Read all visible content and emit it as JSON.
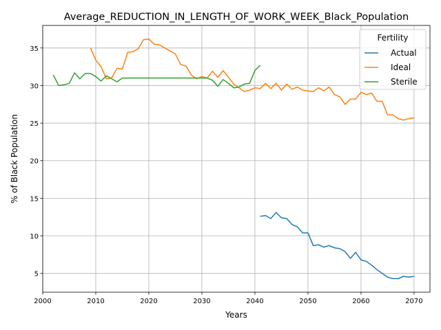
{
  "chart_data": {
    "type": "line",
    "title": "Average_REDUCTION_IN_LENGTH_OF_WORK_WEEK_Black_Population",
    "xlabel": "Years",
    "ylabel": "% of Black Population",
    "xlim": [
      2000,
      2073
    ],
    "ylim": [
      2.5,
      38
    ],
    "xticks": [
      2000,
      2010,
      2020,
      2030,
      2040,
      2050,
      2060,
      2070
    ],
    "yticks": [
      5,
      10,
      15,
      20,
      25,
      30,
      35
    ],
    "grid": true,
    "legend": {
      "title": "Fertility",
      "position": "top-right"
    },
    "series": [
      {
        "name": "Actual",
        "color": "#1f77b4",
        "x": [
          2041,
          2042,
          2043,
          2044,
          2045,
          2046,
          2047,
          2048,
          2049,
          2050,
          2051,
          2052,
          2053,
          2054,
          2055,
          2056,
          2057,
          2058,
          2059,
          2060,
          2061,
          2062,
          2063,
          2064,
          2065,
          2066,
          2067,
          2068,
          2069,
          2070
        ],
        "y": [
          12.6,
          12.7,
          12.3,
          13.1,
          12.4,
          12.3,
          11.5,
          11.2,
          10.4,
          10.4,
          8.7,
          8.8,
          8.5,
          8.7,
          8.4,
          8.3,
          7.9,
          7.0,
          7.8,
          6.8,
          6.6,
          6.1,
          5.5,
          5.0,
          4.5,
          4.3,
          4.3,
          4.6,
          4.5,
          4.6
        ]
      },
      {
        "name": "Ideal",
        "color": "#ff7f0e",
        "x": [
          2009,
          2010,
          2011,
          2012,
          2013,
          2014,
          2015,
          2016,
          2017,
          2018,
          2019,
          2020,
          2021,
          2022,
          2023,
          2024,
          2025,
          2026,
          2027,
          2028,
          2029,
          2030,
          2031,
          2032,
          2033,
          2034,
          2035,
          2036,
          2037,
          2038,
          2039,
          2040,
          2041,
          2042,
          2043,
          2044,
          2045,
          2046,
          2047,
          2048,
          2049,
          2050,
          2051,
          2052,
          2053,
          2054,
          2055,
          2056,
          2057,
          2058,
          2059,
          2060,
          2061,
          2062,
          2063,
          2064,
          2065,
          2066,
          2067,
          2068,
          2069,
          2070
        ],
        "y": [
          35.0,
          33.4,
          32.5,
          30.9,
          31.0,
          32.3,
          32.2,
          34.4,
          34.5,
          34.9,
          36.1,
          36.2,
          35.5,
          35.4,
          35.0,
          34.6,
          34.2,
          32.8,
          32.6,
          31.4,
          30.9,
          31.2,
          31.0,
          31.9,
          31.1,
          32.0,
          31.1,
          30.2,
          29.7,
          29.2,
          29.4,
          29.7,
          29.6,
          30.3,
          29.6,
          30.3,
          29.4,
          30.2,
          29.5,
          29.8,
          29.4,
          29.3,
          29.2,
          29.7,
          29.3,
          29.8,
          28.8,
          28.5,
          27.5,
          28.2,
          28.2,
          29.1,
          28.8,
          29.0,
          27.9,
          27.9,
          26.1,
          26.1,
          25.6,
          25.4,
          25.6,
          25.7
        ]
      },
      {
        "name": "Sterile",
        "color": "#2ca02c",
        "x": [
          2002,
          2003,
          2004,
          2005,
          2006,
          2007,
          2008,
          2009,
          2010,
          2011,
          2012,
          2013,
          2014,
          2015,
          2016,
          2017,
          2018,
          2019,
          2020,
          2021,
          2022,
          2023,
          2024,
          2025,
          2026,
          2027,
          2028,
          2029,
          2030,
          2031,
          2032,
          2033,
          2034,
          2035,
          2036,
          2037,
          2038,
          2039,
          2040,
          2041
        ],
        "y": [
          31.4,
          30.0,
          30.1,
          30.3,
          31.7,
          30.9,
          31.6,
          31.6,
          31.2,
          30.6,
          31.3,
          30.9,
          30.5,
          31.0,
          31.0,
          31.0,
          31.0,
          31.0,
          31.0,
          31.0,
          31.0,
          31.0,
          31.0,
          31.0,
          31.0,
          31.0,
          31.0,
          31.0,
          31.0,
          31.0,
          30.7,
          29.9,
          30.8,
          30.3,
          29.7,
          29.8,
          30.2,
          30.3,
          32.0,
          32.7
        ]
      }
    ]
  }
}
